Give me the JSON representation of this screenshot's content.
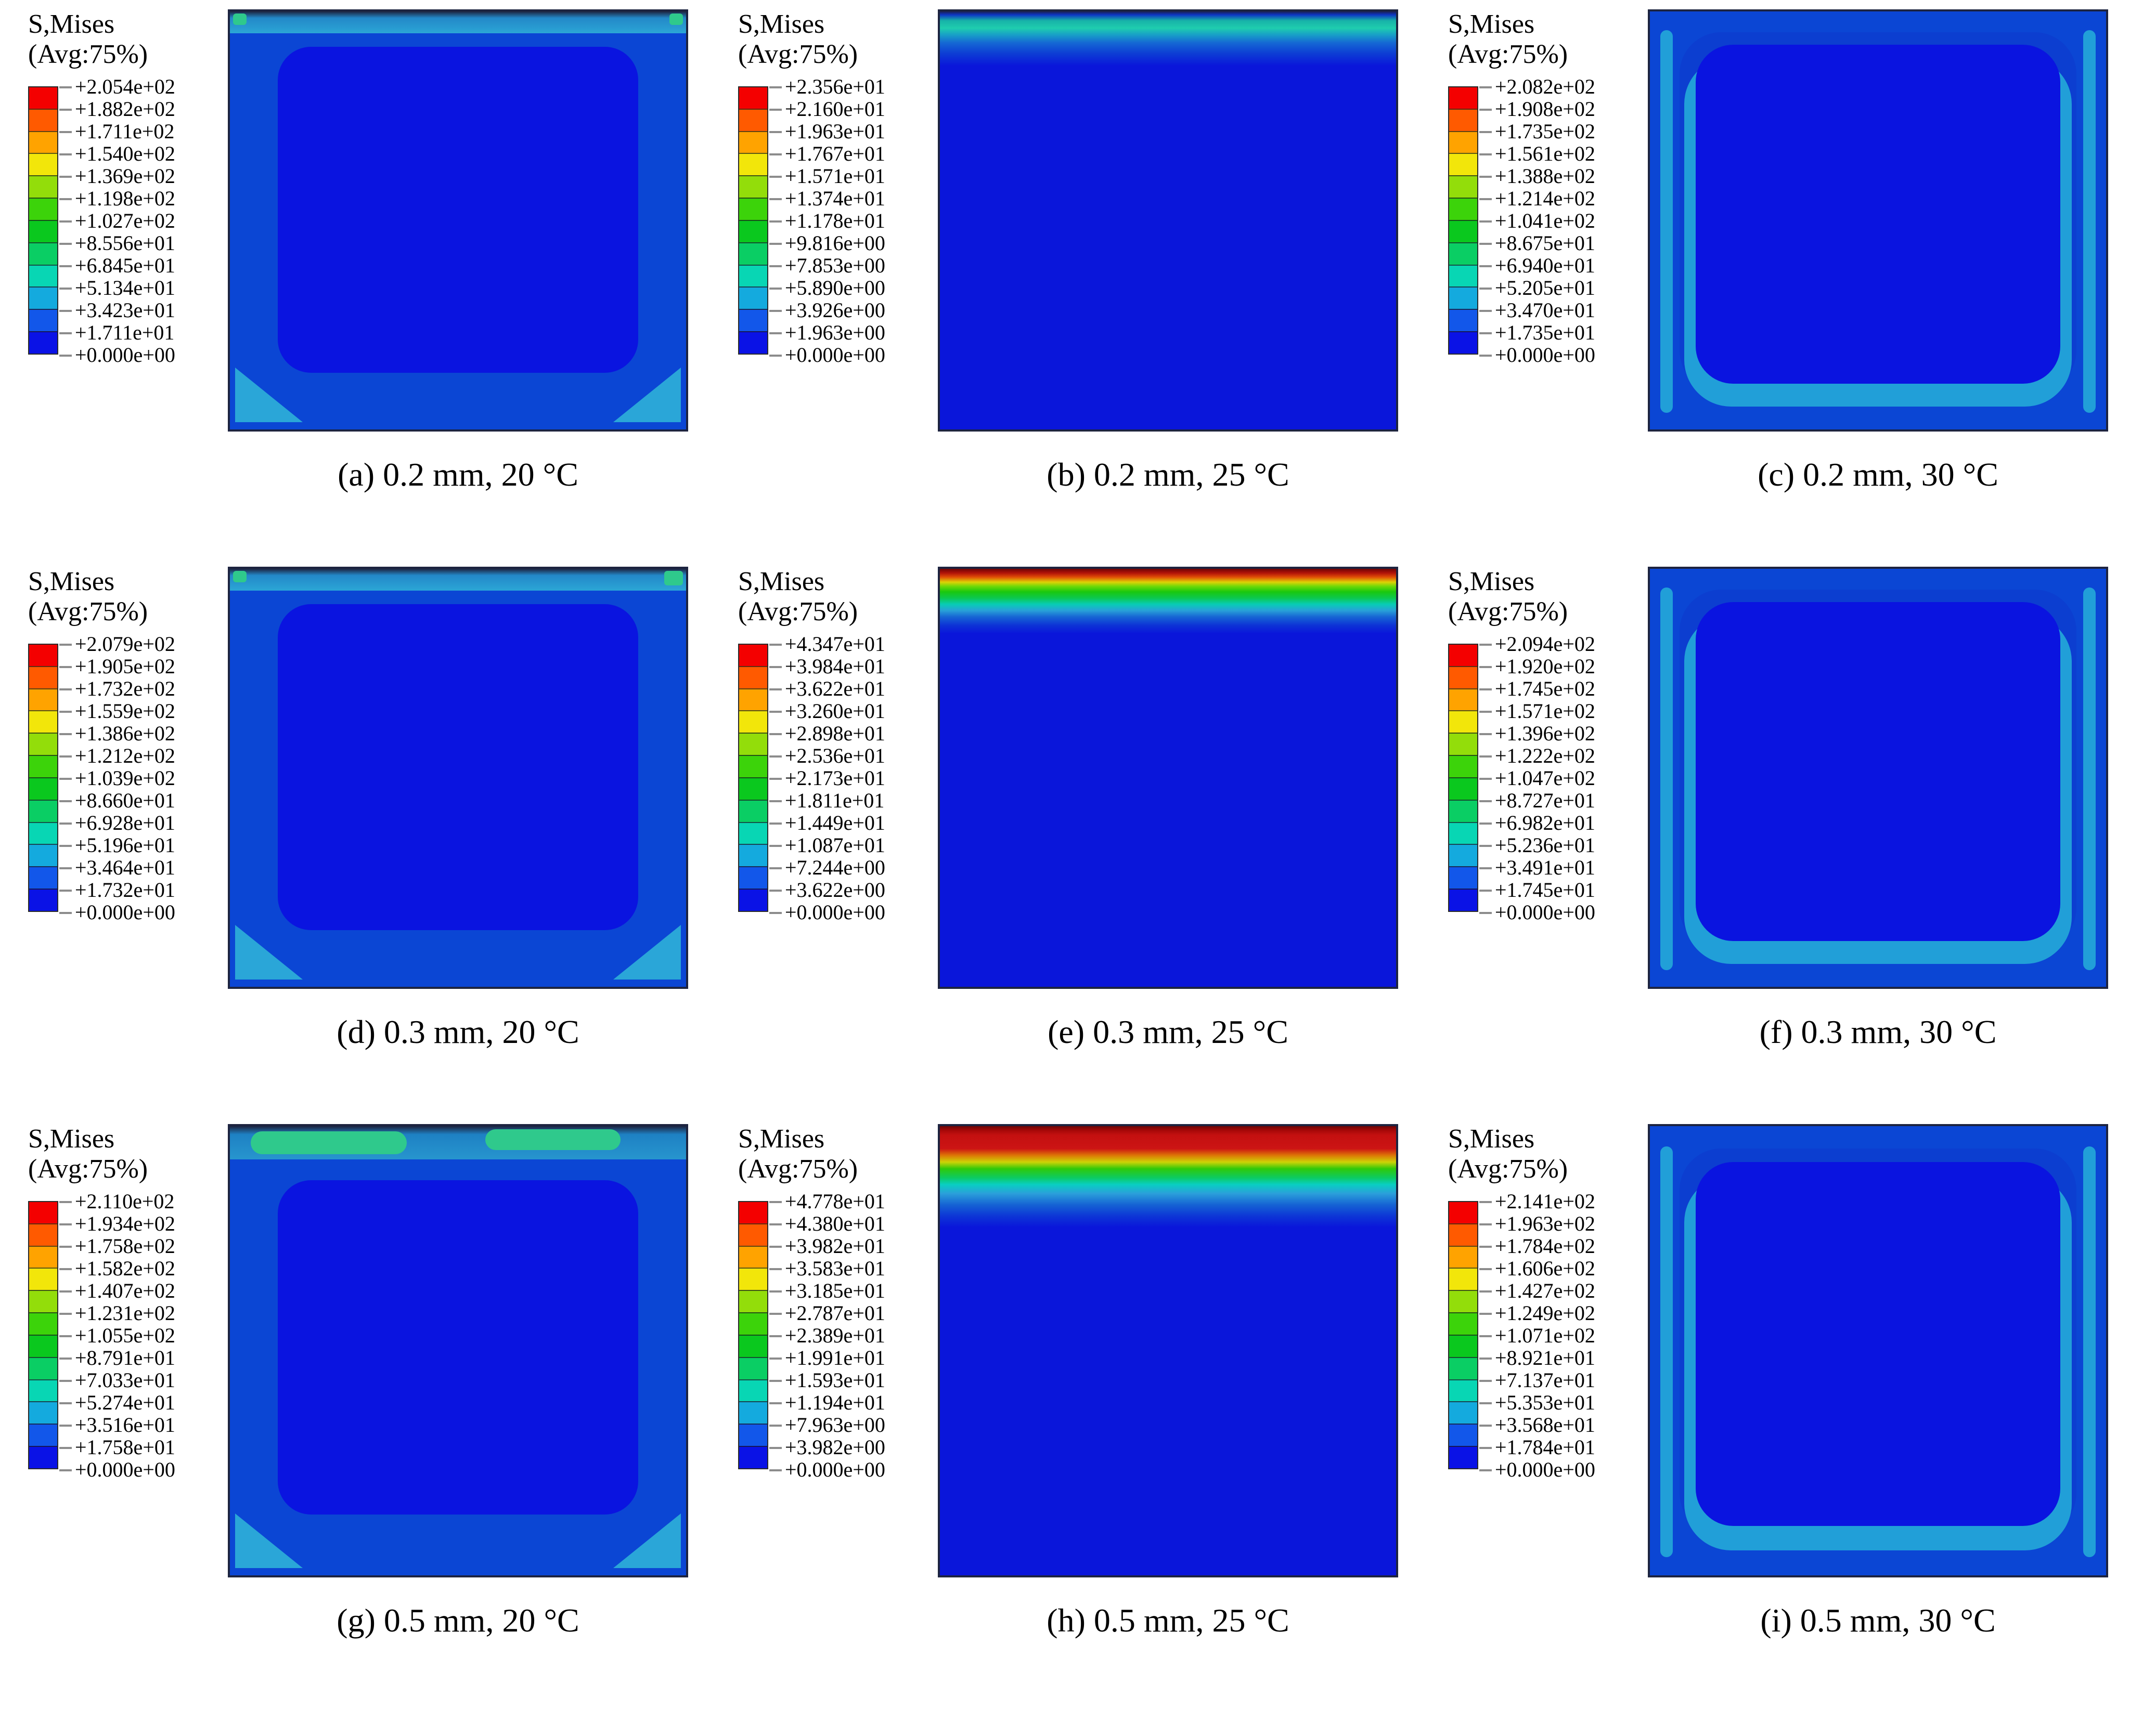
{
  "figure": {
    "field_label": "S,Mises",
    "avg_label": "(Avg:75%)",
    "description": "3x3 grid of Abaqus von Mises stress contour plots for three thicknesses (0.2, 0.3, 0.5 mm) at three temperatures (20, 25, 30 C)"
  },
  "colors": {
    "deep_blue": "#0a14e0",
    "ring_blue": "#0b46d4",
    "cyan_accent": "#219fd8",
    "teal_accent": "#1fcdae",
    "green_accent": "#2fc98c",
    "red_max": "#cc1414",
    "frame_dark": "#1d2440"
  },
  "colorbar_colors": [
    "#f40000",
    "#ff5a00",
    "#ffa300",
    "#f2e60a",
    "#93dd0a",
    "#3cd30a",
    "#0ac81e",
    "#0ace64",
    "#08d6b4",
    "#14aade",
    "#1257ea",
    "#0a12e6"
  ],
  "chart_data": [
    {
      "type": "contour",
      "id": "a",
      "caption": "(a) 0.2 mm, 20 °C",
      "thickness_mm": 0.2,
      "temperature_C": 20,
      "stress_max": 205.4,
      "stress_min": 0.0,
      "legend_values": [
        "+2.054e+02",
        "+1.882e+02",
        "+1.711e+02",
        "+1.540e+02",
        "+1.369e+02",
        "+1.198e+02",
        "+1.027e+02",
        "+8.556e+01",
        "+6.845e+01",
        "+5.134e+01",
        "+3.423e+01",
        "+1.711e+01",
        "+0.000e+00"
      ],
      "pattern": "uniform blue square, cyan band along top edge with small green spots at top corners, cyan triangles at bottom corners, darker blue rounded core"
    },
    {
      "type": "contour",
      "id": "b",
      "caption": "(b) 0.2 mm, 25 °C",
      "thickness_mm": 0.2,
      "temperature_C": 25,
      "stress_max": 23.56,
      "stress_min": 0.0,
      "legend_values": [
        "+2.356e+01",
        "+2.160e+01",
        "+1.963e+01",
        "+1.767e+01",
        "+1.571e+01",
        "+1.374e+01",
        "+1.178e+01",
        "+9.816e+00",
        "+7.853e+00",
        "+5.890e+00",
        "+3.926e+00",
        "+1.963e+00",
        "+0.000e+00"
      ],
      "pattern": "horizontal teal-cyan band near top edge fading through blue shades into uniform deep blue field"
    },
    {
      "type": "contour",
      "id": "c",
      "caption": "(c) 0.2 mm, 30 °C",
      "thickness_mm": 0.2,
      "temperature_C": 30,
      "stress_max": 208.2,
      "stress_min": 0.0,
      "legend_values": [
        "+2.082e+02",
        "+1.908e+02",
        "+1.735e+02",
        "+1.561e+02",
        "+1.388e+02",
        "+1.214e+02",
        "+1.041e+02",
        "+8.675e+01",
        "+6.940e+01",
        "+5.205e+01",
        "+3.470e+01",
        "+1.735e+01",
        "+0.000e+00"
      ],
      "pattern": "blue square with cyan vertical streaks along left and right edges and cyan rounded rim around bottom of deep blue core"
    },
    {
      "type": "contour",
      "id": "d",
      "caption": "(d) 0.3 mm, 20 °C",
      "thickness_mm": 0.3,
      "temperature_C": 20,
      "stress_max": 207.9,
      "stress_min": 0.0,
      "legend_values": [
        "+2.079e+02",
        "+1.905e+02",
        "+1.732e+02",
        "+1.559e+02",
        "+1.386e+02",
        "+1.212e+02",
        "+1.039e+02",
        "+8.660e+01",
        "+6.928e+01",
        "+5.196e+01",
        "+3.464e+01",
        "+1.732e+01",
        "+0.000e+00"
      ],
      "pattern": "uniform blue square, cyan band along top edge with green spot at top-right corner, cyan triangles at bottom corners, darker blue rounded core"
    },
    {
      "type": "contour",
      "id": "e",
      "caption": "(e) 0.3 mm, 25 °C",
      "thickness_mm": 0.3,
      "temperature_C": 25,
      "stress_max": 43.47,
      "stress_min": 0.0,
      "legend_values": [
        "+4.347e+01",
        "+3.984e+01",
        "+3.622e+01",
        "+3.260e+01",
        "+2.898e+01",
        "+2.536e+01",
        "+2.173e+01",
        "+1.811e+01",
        "+1.449e+01",
        "+1.087e+01",
        "+7.244e+00",
        "+3.622e+00",
        "+0.000e+00"
      ],
      "pattern": "thin rainbow band at top edge (dark red, red, orange, yellow, green, teal, cyan, light blue) over uniform deep blue field"
    },
    {
      "type": "contour",
      "id": "f",
      "caption": "(f) 0.3 mm, 30 °C",
      "thickness_mm": 0.3,
      "temperature_C": 30,
      "stress_max": 209.4,
      "stress_min": 0.0,
      "legend_values": [
        "+2.094e+02",
        "+1.920e+02",
        "+1.745e+02",
        "+1.571e+02",
        "+1.396e+02",
        "+1.222e+02",
        "+1.047e+02",
        "+8.727e+01",
        "+6.982e+01",
        "+5.236e+01",
        "+3.491e+01",
        "+1.745e+01",
        "+0.000e+00"
      ],
      "pattern": "blue square with cyan vertical streaks along left and right edges and cyan rounded rim around bottom of deep blue core"
    },
    {
      "type": "contour",
      "id": "g",
      "caption": "(g) 0.5 mm, 20 °C",
      "thickness_mm": 0.5,
      "temperature_C": 20,
      "stress_max": 211.0,
      "stress_min": 0.0,
      "legend_values": [
        "+2.110e+02",
        "+1.934e+02",
        "+1.758e+02",
        "+1.582e+02",
        "+1.407e+02",
        "+1.231e+02",
        "+1.055e+02",
        "+8.791e+01",
        "+7.033e+01",
        "+5.274e+01",
        "+3.516e+01",
        "+1.758e+01",
        "+0.000e+00"
      ],
      "pattern": "blue square with wide cyan top band containing two elongated green blobs, cyan triangles at bottom corners, darker blue rounded core"
    },
    {
      "type": "contour",
      "id": "h",
      "caption": "(h) 0.5 mm, 25 °C",
      "thickness_mm": 0.5,
      "temperature_C": 25,
      "stress_max": 47.78,
      "stress_min": 0.0,
      "legend_values": [
        "+4.778e+01",
        "+4.380e+01",
        "+3.982e+01",
        "+3.583e+01",
        "+3.185e+01",
        "+2.787e+01",
        "+2.389e+01",
        "+1.991e+01",
        "+1.593e+01",
        "+1.194e+01",
        "+7.963e+00",
        "+3.982e+00",
        "+0.000e+00"
      ],
      "pattern": "thick solid red band at top edge grading through yellow, green, teal and blue into uniform deep blue field"
    },
    {
      "type": "contour",
      "id": "i",
      "caption": "(i) 0.5 mm, 30 °C",
      "thickness_mm": 0.5,
      "temperature_C": 30,
      "stress_max": 214.1,
      "stress_min": 0.0,
      "legend_values": [
        "+2.141e+02",
        "+1.963e+02",
        "+1.784e+02",
        "+1.606e+02",
        "+1.427e+02",
        "+1.249e+02",
        "+1.071e+02",
        "+8.921e+01",
        "+7.137e+01",
        "+5.353e+01",
        "+3.568e+01",
        "+1.784e+01",
        "+0.000e+00"
      ],
      "pattern": "blue square with cyan vertical streaks along left and right edges and cyan rounded rim around bottom of deep blue core"
    }
  ]
}
